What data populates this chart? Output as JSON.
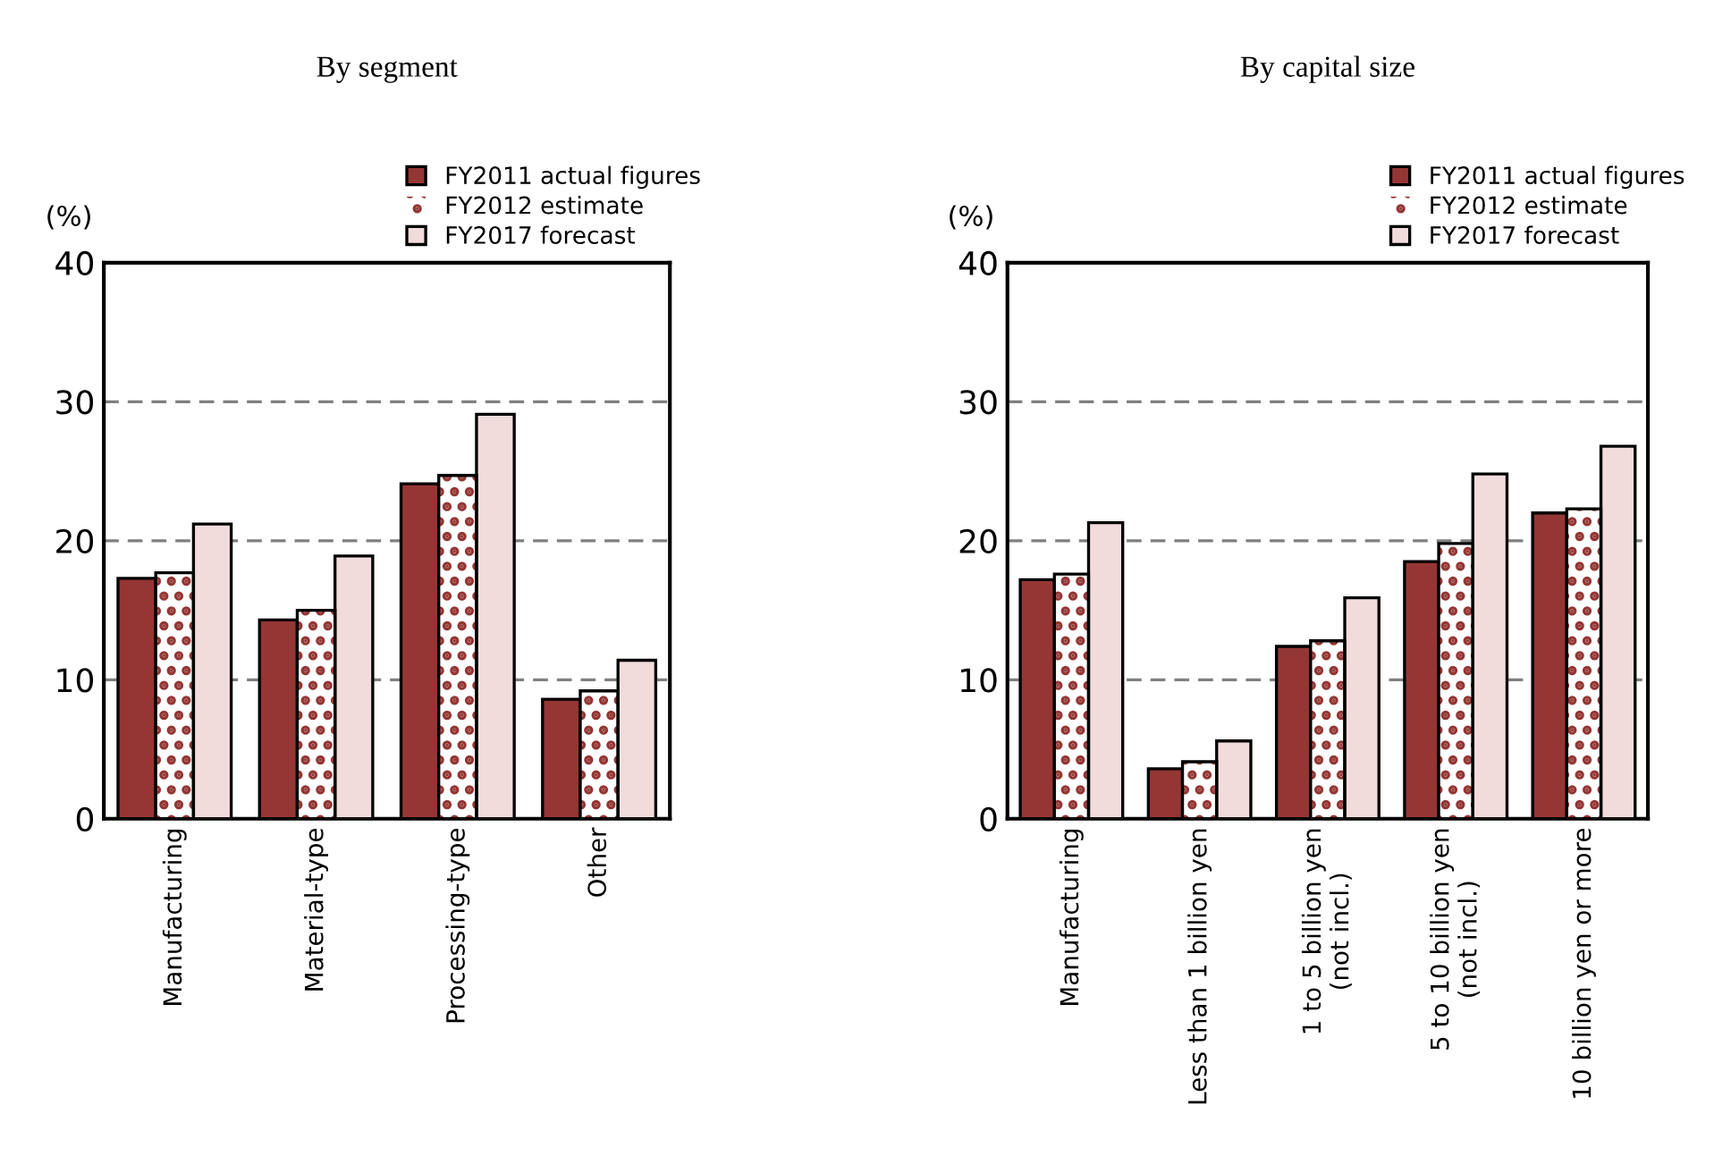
{
  "chart_data": [
    {
      "type": "bar",
      "title": "By segment",
      "ylabel": "(%)",
      "categories": [
        "Manufacturing",
        "Material-type",
        "Processing-type",
        "Other"
      ],
      "series": [
        {
          "name": "FY2011 actual figures",
          "color": "#943634",
          "values": [
            17.3,
            14.3,
            24.1,
            8.6
          ]
        },
        {
          "name": "FY2012 estimate",
          "color": "#943634",
          "values": [
            17.7,
            15.0,
            24.7,
            9.2
          ]
        },
        {
          "name": "FY2017 forecast",
          "color": "#f2dcdb",
          "values": [
            21.2,
            18.9,
            29.1,
            11.4
          ]
        }
      ],
      "ylim": [
        0,
        40
      ],
      "yticks": [
        0,
        10,
        20,
        30,
        40
      ],
      "grid": "y",
      "legend": "top right"
    },
    {
      "type": "bar",
      "title": "By capital size",
      "ylabel": "(%)",
      "categories": [
        "Manufacturing",
        "Less than 1 billion yen",
        "1 to 5 billion yen\n(not incl.)",
        "5 to 10 billion yen\n(not incl.)",
        "10 billion yen or more"
      ],
      "series": [
        {
          "name": "FY2011 actual figures",
          "color": "#943634",
          "values": [
            17.2,
            3.6,
            12.4,
            18.5,
            22.0
          ]
        },
        {
          "name": "FY2012 estimate",
          "color": "#943634",
          "values": [
            17.6,
            4.1,
            12.8,
            19.8,
            22.3
          ]
        },
        {
          "name": "FY2017 forecast",
          "color": "#f2dcdb",
          "values": [
            21.3,
            5.6,
            15.9,
            24.8,
            26.8
          ]
        }
      ],
      "ylim": [
        0,
        40
      ],
      "yticks": [
        0,
        10,
        20,
        30,
        40
      ],
      "grid": "y",
      "legend": "top right"
    }
  ]
}
